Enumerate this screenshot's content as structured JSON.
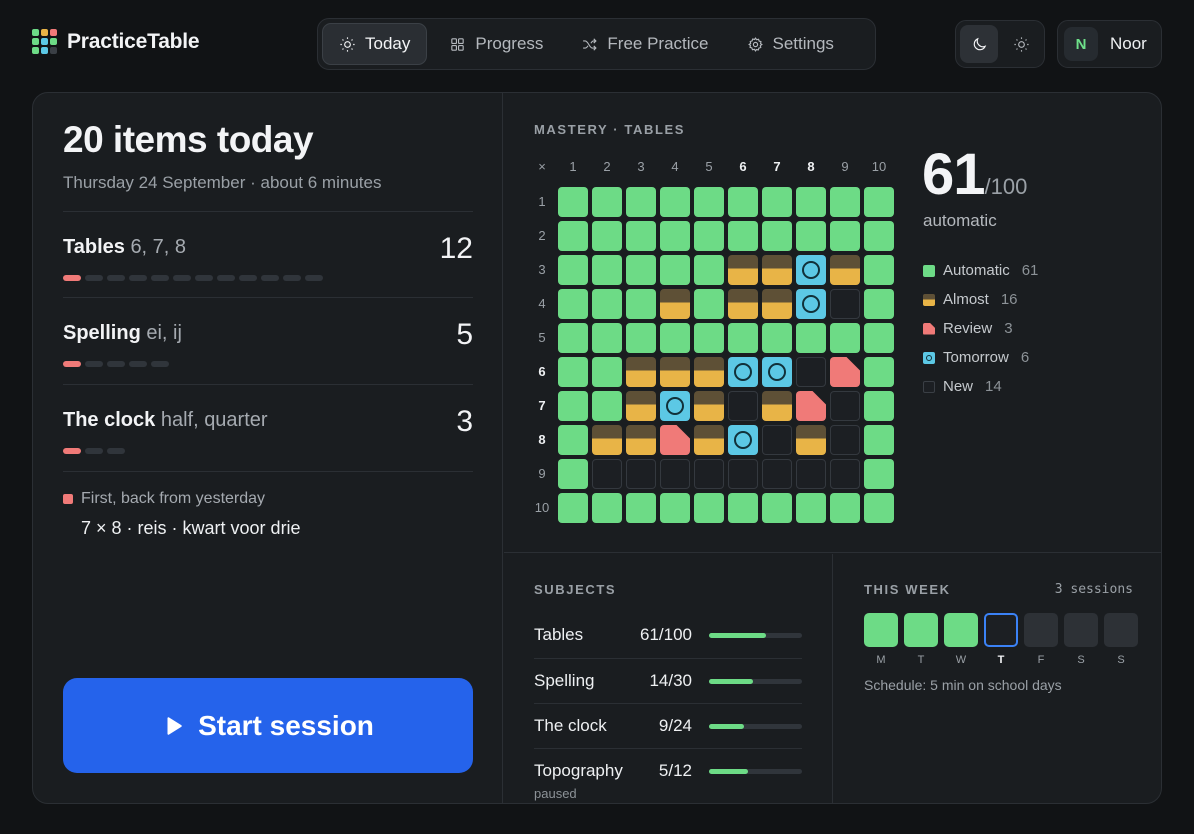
{
  "app": {
    "name": "PracticeTable"
  },
  "logo_colors": [
    "#6ddb86",
    "#e8b447",
    "#f07a78",
    "#6ddb86",
    "#5cc8e5",
    "#6ddb86",
    "#6ddb86",
    "#5cc8e5",
    "#3a3f45"
  ],
  "nav": {
    "tabs": [
      {
        "label": "Today",
        "icon": "sun-icon",
        "active": true
      },
      {
        "label": "Progress",
        "icon": "grid-icon",
        "active": false
      },
      {
        "label": "Free Practice",
        "icon": "shuffle-icon",
        "active": false
      },
      {
        "label": "Settings",
        "icon": "gear-icon",
        "active": false
      }
    ]
  },
  "theme": {
    "modes": [
      "moon-icon",
      "sun-icon"
    ],
    "active": "dark"
  },
  "user": {
    "initial": "N",
    "name": "Noor"
  },
  "today": {
    "title": "20 items today",
    "subtitle": "Thursday 24 September · about 6 minutes",
    "subjects": [
      {
        "name": "Tables",
        "detail": "6, 7, 8",
        "count": "12",
        "pips_total": 12,
        "pips_done": 1
      },
      {
        "name": "Spelling",
        "detail": "ei, ij",
        "count": "5",
        "pips_total": 5,
        "pips_done": 1
      },
      {
        "name": "The clock",
        "detail": "half, quarter",
        "count": "3",
        "pips_total": 3,
        "pips_done": 1
      }
    ],
    "back_note": "First, back from yesterday",
    "back_items": "7 × 8 · reis · kwart voor drie",
    "start_label": "Start session"
  },
  "mastery": {
    "label": "MASTERY · TABLES",
    "corner": "×",
    "columns": [
      "1",
      "2",
      "3",
      "4",
      "5",
      "6",
      "7",
      "8",
      "9",
      "10"
    ],
    "rows": [
      "1",
      "2",
      "3",
      "4",
      "5",
      "6",
      "7",
      "8",
      "9",
      "10"
    ],
    "highlight": [
      "6",
      "7",
      "8"
    ],
    "grid": [
      "AAAAAAAAAA",
      "AAAAAAAAAA",
      "AAAAALLTLA",
      "AAALALLTNA",
      "AAAAAAAAAA",
      "AALLLTTNRA",
      "AALTLNLRNA",
      "ALLRLTNLNA",
      "ANNNNNNNNA",
      "AAAAAAAAAA"
    ],
    "score": "61",
    "score_total": "/100",
    "score_label": "automatic",
    "legend": [
      {
        "key": "auto",
        "label": "Automatic",
        "count": "61",
        "color": "#6ddb86"
      },
      {
        "key": "almost",
        "label": "Almost",
        "count": "16",
        "color": "#e8b447"
      },
      {
        "key": "review",
        "label": "Review",
        "count": "3",
        "color": "#f07a78"
      },
      {
        "key": "tomorrow",
        "label": "Tomorrow",
        "count": "6",
        "color": "#5cc8e5"
      },
      {
        "key": "new",
        "label": "New",
        "count": "14",
        "color": "#1c1f23"
      }
    ]
  },
  "subjects": {
    "label": "SUBJECTS",
    "items": [
      {
        "name": "Tables",
        "value": "61/100",
        "progress": 0.61
      },
      {
        "name": "Spelling",
        "value": "14/30",
        "progress": 0.47
      },
      {
        "name": "The clock",
        "value": "9/24",
        "progress": 0.375
      },
      {
        "name": "Topography",
        "sub": "paused",
        "value": "5/12",
        "progress": 0.42
      }
    ]
  },
  "week": {
    "label": "THIS WEEK",
    "sessions": "3 sessions",
    "days": [
      {
        "label": "M",
        "state": "done"
      },
      {
        "label": "T",
        "state": "done"
      },
      {
        "label": "W",
        "state": "done"
      },
      {
        "label": "T",
        "state": "current"
      },
      {
        "label": "F",
        "state": "future"
      },
      {
        "label": "S",
        "state": "future"
      },
      {
        "label": "S",
        "state": "future"
      }
    ],
    "schedule": "Schedule: 5 min on school days"
  }
}
